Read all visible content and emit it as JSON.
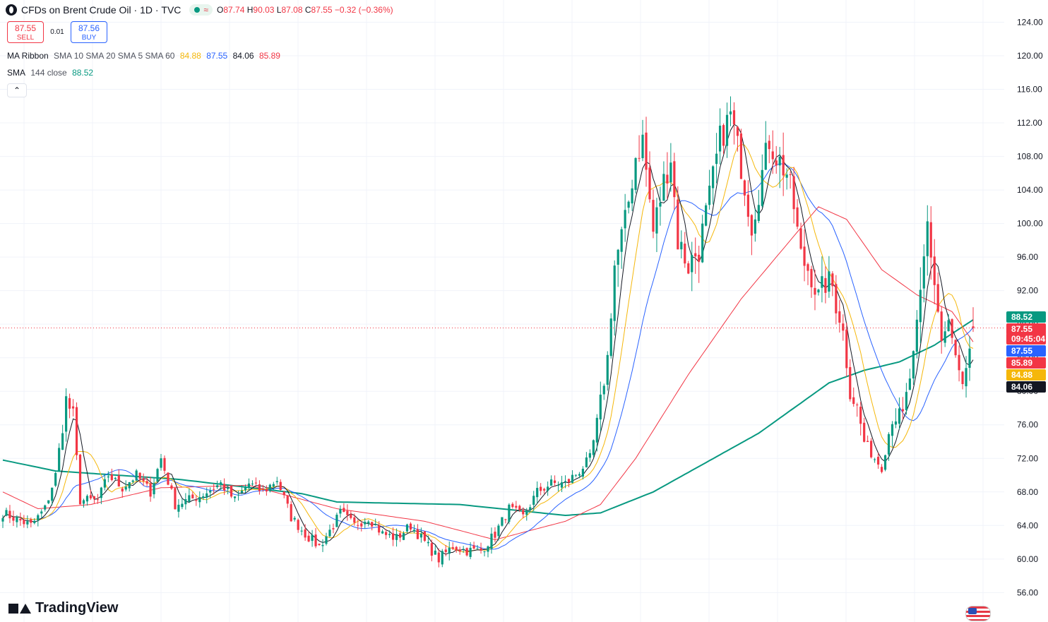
{
  "header": {
    "symbol": "CFDs on Brent Crude Oil",
    "interval": "1D",
    "source": "TVC",
    "open_label": "O",
    "open": "87.74",
    "high_label": "H",
    "high": "90.03",
    "low_label": "L",
    "low": "87.08",
    "close_label": "C",
    "close": "87.55",
    "change": "−0.32 (−0.36%)"
  },
  "trade": {
    "sell_price": "87.55",
    "sell_label": "SELL",
    "spread": "0.01",
    "buy_price": "87.56",
    "buy_label": "BUY"
  },
  "indicators": {
    "ribbon_label": "MA Ribbon",
    "ribbon_params": "SMA 10 SMA 20 SMA 5 SMA 60",
    "ribbon_values": [
      {
        "value": "84.88",
        "color": "#f5b70a"
      },
      {
        "value": "87.55",
        "color": "#2962ff"
      },
      {
        "value": "84.06",
        "color": "#131722"
      },
      {
        "value": "85.89",
        "color": "#f23645"
      }
    ],
    "sma144_label": "SMA",
    "sma144_params": "144 close",
    "sma144_value": "88.52",
    "sma144_color": "#089981"
  },
  "collapse_icon": "chevron-up-icon",
  "price_axis": {
    "ticks": [
      "124.00",
      "120.00",
      "116.00",
      "112.00",
      "108.00",
      "104.00",
      "100.00",
      "96.00",
      "92.00",
      "88.00",
      "84.00",
      "80.00",
      "76.00",
      "72.00",
      "68.00",
      "64.00",
      "60.00",
      "56.00"
    ]
  },
  "axis_badges": [
    {
      "label": "88.52",
      "bg": "#089981"
    },
    {
      "label": "87.55",
      "bg": "#f23645"
    },
    {
      "label": "09:45:04",
      "bg": "#f23645"
    },
    {
      "label": "87.55",
      "bg": "#2962ff"
    },
    {
      "label": "85.89",
      "bg": "#f23645"
    },
    {
      "label": "84.88",
      "bg": "#f5b70a"
    },
    {
      "label": "84.06",
      "bg": "#131722"
    }
  ],
  "brand": "TradingView",
  "chart_data": {
    "type": "candlestick",
    "y_range": [
      53.0,
      126.0
    ],
    "current_price": 87.55,
    "up_color": "#089981",
    "down_color": "#f23645",
    "anchors": [
      [
        0,
        65.5
      ],
      [
        8,
        64.0
      ],
      [
        12,
        66.0
      ],
      [
        15,
        70.0
      ],
      [
        18,
        79.0
      ],
      [
        20,
        77.0
      ],
      [
        22,
        67.0
      ],
      [
        27,
        67.0
      ],
      [
        30,
        70.0
      ],
      [
        34,
        68.5
      ],
      [
        38,
        70.0
      ],
      [
        42,
        68.0
      ],
      [
        45,
        72.0
      ],
      [
        49,
        66.5
      ],
      [
        56,
        67.5
      ],
      [
        62,
        69.0
      ],
      [
        66,
        67.0
      ],
      [
        70,
        69.0
      ],
      [
        74,
        68.0
      ],
      [
        78,
        69.5
      ],
      [
        82,
        65.0
      ],
      [
        86,
        63.0
      ],
      [
        90,
        61.5
      ],
      [
        94,
        64.0
      ],
      [
        96,
        65.5
      ],
      [
        100,
        64.0
      ],
      [
        104,
        65.0
      ],
      [
        108,
        63.0
      ],
      [
        112,
        62.5
      ],
      [
        116,
        64.0
      ],
      [
        120,
        62.0
      ],
      [
        124,
        60.0
      ],
      [
        128,
        61.5
      ],
      [
        132,
        61.0
      ],
      [
        136,
        61.0
      ],
      [
        140,
        63.0
      ],
      [
        144,
        66.0
      ],
      [
        148,
        65.0
      ],
      [
        152,
        68.0
      ],
      [
        156,
        69.0
      ],
      [
        160,
        69.0
      ],
      [
        164,
        70.5
      ],
      [
        167,
        72.0
      ],
      [
        169,
        76.0
      ],
      [
        172,
        84.0
      ],
      [
        174,
        95.0
      ],
      [
        177,
        100.0
      ],
      [
        180,
        108.0
      ],
      [
        182,
        110.0
      ],
      [
        185,
        99.0
      ],
      [
        188,
        105.0
      ],
      [
        190,
        108.0
      ],
      [
        192,
        98.0
      ],
      [
        195,
        95.0
      ],
      [
        198,
        97.0
      ],
      [
        201,
        103.0
      ],
      [
        204,
        110.0
      ],
      [
        207,
        113.0
      ],
      [
        210,
        107.0
      ],
      [
        213,
        100.0
      ],
      [
        215,
        104.0
      ],
      [
        218,
        110.0
      ],
      [
        220,
        108.0
      ],
      [
        223,
        106.0
      ],
      [
        225,
        102.0
      ],
      [
        227,
        96.0
      ],
      [
        230,
        94.0
      ],
      [
        232,
        91.0
      ],
      [
        234,
        93.0
      ],
      [
        236,
        92.5
      ],
      [
        239,
        87.0
      ],
      [
        241,
        80.0
      ],
      [
        243,
        78.0
      ],
      [
        245,
        74.0
      ],
      [
        248,
        72.0
      ],
      [
        250,
        71.0
      ],
      [
        253,
        77.0
      ],
      [
        256,
        77.0
      ],
      [
        259,
        84.0
      ],
      [
        261,
        91.0
      ],
      [
        263,
        100.0
      ],
      [
        265,
        93.0
      ],
      [
        267,
        86.0
      ],
      [
        269,
        88.0
      ],
      [
        271,
        84.0
      ],
      [
        273,
        80.0
      ],
      [
        275,
        84.0
      ],
      [
        276,
        87.55
      ]
    ],
    "sma144": [
      [
        0,
        71.8
      ],
      [
        15,
        70.5
      ],
      [
        50,
        69.5
      ],
      [
        85,
        67.8
      ],
      [
        95,
        66.8
      ],
      [
        130,
        66.5
      ],
      [
        160,
        65.2
      ],
      [
        170,
        65.5
      ],
      [
        185,
        68.0
      ],
      [
        200,
        71.5
      ],
      [
        215,
        75.0
      ],
      [
        235,
        81.0
      ],
      [
        245,
        82.5
      ],
      [
        255,
        83.5
      ],
      [
        265,
        85.5
      ],
      [
        276,
        88.52
      ]
    ],
    "sma60": [
      [
        0,
        68.0
      ],
      [
        10,
        66.0
      ],
      [
        25,
        66.5
      ],
      [
        45,
        68.5
      ],
      [
        70,
        68.8
      ],
      [
        95,
        66.0
      ],
      [
        120,
        64.5
      ],
      [
        140,
        62.3
      ],
      [
        160,
        64.5
      ],
      [
        170,
        66.5
      ],
      [
        180,
        72.0
      ],
      [
        195,
        82.0
      ],
      [
        210,
        91.0
      ],
      [
        225,
        98.5
      ],
      [
        232,
        102.0
      ],
      [
        240,
        100.5
      ],
      [
        250,
        94.5
      ],
      [
        260,
        91.5
      ],
      [
        270,
        89.5
      ],
      [
        276,
        85.89
      ]
    ]
  }
}
